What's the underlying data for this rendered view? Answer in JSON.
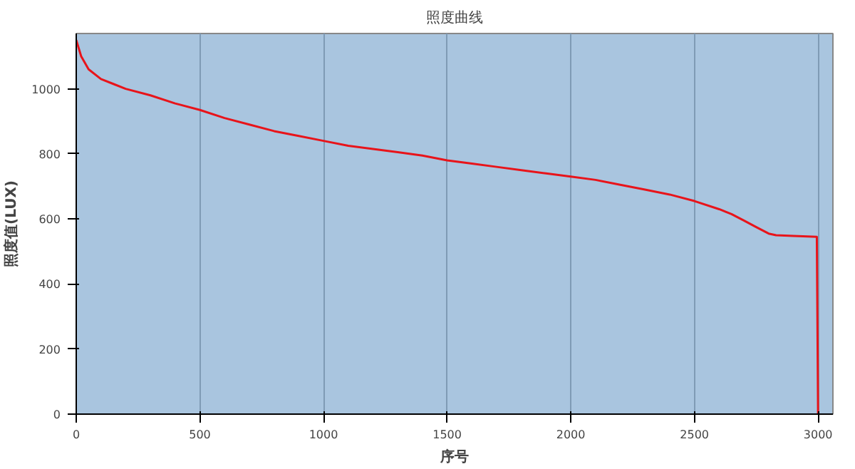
{
  "chart_data": {
    "type": "line",
    "title": "照度曲线",
    "xlabel": "序号",
    "ylabel": "照度值(LUX)",
    "x": [
      0,
      20,
      50,
      100,
      150,
      200,
      300,
      400,
      500,
      600,
      700,
      800,
      900,
      1000,
      1100,
      1200,
      1300,
      1400,
      1500,
      1600,
      1700,
      1800,
      1900,
      2000,
      2100,
      2200,
      2300,
      2400,
      2500,
      2600,
      2650,
      2700,
      2750,
      2800,
      2830,
      2900,
      2995,
      3000
    ],
    "series": [
      {
        "color": "#e8141a",
        "values": [
          1150,
          1100,
          1060,
          1030,
          1015,
          1000,
          980,
          955,
          935,
          910,
          890,
          870,
          855,
          840,
          825,
          815,
          805,
          795,
          780,
          770,
          760,
          750,
          740,
          730,
          720,
          705,
          690,
          675,
          655,
          630,
          615,
          595,
          575,
          555,
          550,
          548,
          545,
          0
        ]
      }
    ],
    "xlim": [
      0,
      3060
    ],
    "ylim": [
      0,
      1170
    ],
    "xticks": [
      0,
      500,
      1000,
      1500,
      2000,
      2500,
      3000
    ],
    "yticks": [
      0,
      200,
      400,
      600,
      800,
      1000
    ],
    "grid": "x",
    "marker": "none",
    "line_style": "solid"
  }
}
